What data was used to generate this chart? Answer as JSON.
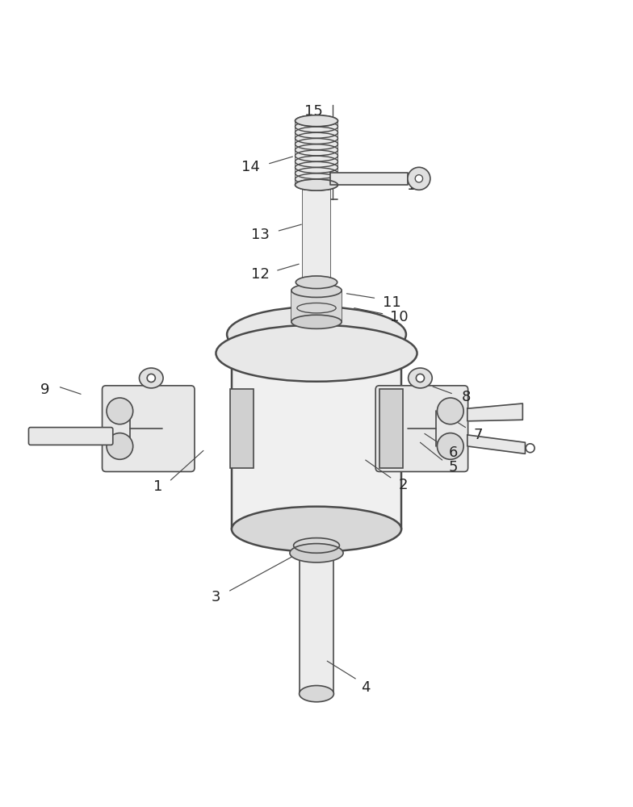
{
  "bg_color": "#ffffff",
  "line_color": "#4a4a4a",
  "lw": 1.2,
  "fig_width": 7.84,
  "fig_height": 10.0
}
